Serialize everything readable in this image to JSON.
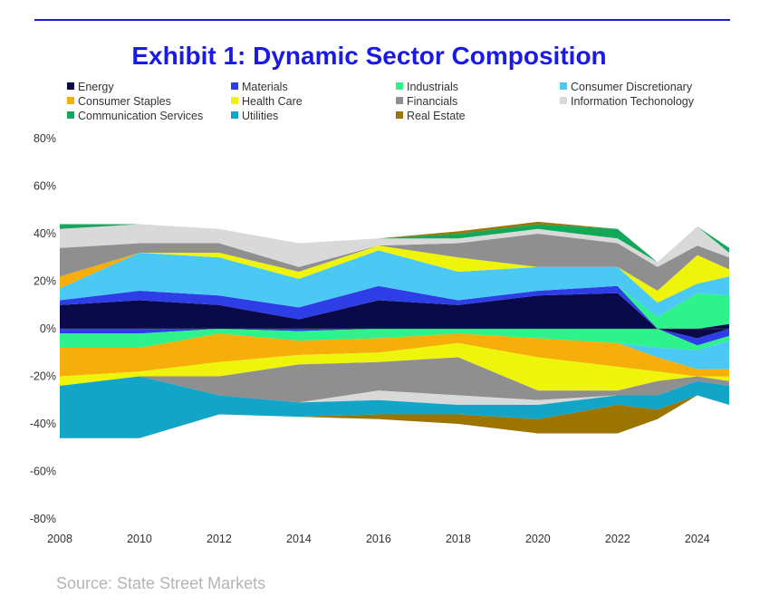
{
  "chart_data": {
    "type": "area",
    "title": "Exhibit 1: Dynamic Sector Composition",
    "xlabel": "",
    "ylabel": "",
    "ylim": [
      -80,
      80
    ],
    "xlim": [
      2008,
      2024.8
    ],
    "yticks": [
      "80%",
      "60%",
      "40%",
      "20%",
      "0%",
      "-20%",
      "-40%",
      "-60%",
      "-80%"
    ],
    "yticks_values": [
      80,
      60,
      40,
      20,
      0,
      -20,
      -40,
      -60,
      -80
    ],
    "xticks": [
      "2008",
      "2010",
      "2012",
      "2014",
      "2016",
      "2018",
      "2020",
      "2022",
      "2024"
    ],
    "xticks_values": [
      2008,
      2010,
      2012,
      2014,
      2016,
      2018,
      2020,
      2022,
      2024
    ],
    "legend_position": "top",
    "grid": false,
    "sectors": [
      {
        "name": "Energy",
        "color": "#0a0a4a"
      },
      {
        "name": "Materials",
        "color": "#2e3ee6"
      },
      {
        "name": "Industrials",
        "color": "#2ef28c"
      },
      {
        "name": "Consumer Discretionary",
        "color": "#4cc8f4"
      },
      {
        "name": "Consumer Staples",
        "color": "#f5ae0a"
      },
      {
        "name": "Health Care",
        "color": "#eef50a"
      },
      {
        "name": "Financials",
        "color": "#8f8f8f"
      },
      {
        "name": "Information Techonology",
        "color": "#d9d9d9"
      },
      {
        "name": "Communication Services",
        "color": "#12a85a"
      },
      {
        "name": "Utilities",
        "color": "#12a5c8"
      },
      {
        "name": "Real Estate",
        "color": "#9c7400"
      }
    ],
    "long_series": [
      {
        "name": "Energy",
        "x": [
          2008,
          2010,
          2012,
          2014,
          2016,
          2018,
          2020,
          2022,
          2023,
          2024,
          2024.8
        ],
        "values": [
          10,
          12,
          10,
          4,
          12,
          10,
          14,
          15,
          0,
          0,
          2
        ]
      },
      {
        "name": "Materials",
        "x": [
          2008,
          2010,
          2012,
          2014,
          2016,
          2018,
          2020,
          2022,
          2023,
          2024,
          2024.8
        ],
        "values": [
          2,
          4,
          4,
          5,
          6,
          2,
          2,
          3,
          0,
          0,
          0
        ]
      },
      {
        "name": "Industrials",
        "x": [
          2008,
          2010,
          2012,
          2014,
          2016,
          2018,
          2020,
          2022,
          2023,
          2024,
          2024.8
        ],
        "values": [
          0,
          0,
          0,
          0,
          0,
          0,
          0,
          0,
          5,
          15,
          12
        ]
      },
      {
        "name": "Consumer Discretionary",
        "x": [
          2008,
          2010,
          2012,
          2014,
          2016,
          2018,
          2020,
          2022,
          2023,
          2024,
          2024.8
        ],
        "values": [
          5,
          16,
          16,
          12,
          15,
          12,
          10,
          8,
          6,
          4,
          8
        ]
      },
      {
        "name": "Consumer Staples",
        "x": [
          2008,
          2010,
          2012,
          2014,
          2016,
          2018,
          2020,
          2022,
          2023,
          2024,
          2024.8
        ],
        "values": [
          5,
          0,
          0,
          0,
          0,
          0,
          0,
          0,
          0,
          0,
          0
        ]
      },
      {
        "name": "Health Care",
        "x": [
          2008,
          2010,
          2012,
          2014,
          2016,
          2018,
          2020,
          2022,
          2023,
          2024,
          2024.8
        ],
        "values": [
          0,
          0,
          2,
          3,
          2,
          6,
          0,
          0,
          5,
          12,
          3
        ]
      },
      {
        "name": "Financials",
        "x": [
          2008,
          2010,
          2012,
          2014,
          2016,
          2018,
          2020,
          2022,
          2023,
          2024,
          2024.8
        ],
        "values": [
          12,
          4,
          4,
          2,
          0,
          6,
          14,
          10,
          10,
          4,
          5
        ]
      },
      {
        "name": "Information Techonology",
        "x": [
          2008,
          2010,
          2012,
          2014,
          2016,
          2018,
          2020,
          2022,
          2023,
          2024,
          2024.8
        ],
        "values": [
          8,
          8,
          6,
          10,
          3,
          2,
          2,
          2,
          2,
          8,
          2
        ]
      },
      {
        "name": "Communication Services",
        "x": [
          2008,
          2010,
          2012,
          2014,
          2016,
          2018,
          2020,
          2022,
          2023,
          2024,
          2024.8
        ],
        "values": [
          2,
          0,
          0,
          0,
          0,
          2,
          2,
          4,
          0,
          0,
          2
        ]
      },
      {
        "name": "Utilities",
        "x": [
          2008,
          2010,
          2012,
          2014,
          2016,
          2018,
          2020,
          2022,
          2023,
          2024,
          2024.8
        ],
        "values": [
          0,
          0,
          0,
          0,
          0,
          0,
          0,
          0,
          0,
          0,
          0
        ]
      },
      {
        "name": "Real Estate",
        "x": [
          2008,
          2010,
          2012,
          2014,
          2016,
          2018,
          2020,
          2022,
          2023,
          2024,
          2024.8
        ],
        "values": [
          0,
          0,
          0,
          0,
          0,
          1,
          1,
          0,
          0,
          0,
          0
        ]
      }
    ],
    "short_series": [
      {
        "name": "Energy",
        "x": [
          2008,
          2010,
          2012,
          2014,
          2016,
          2018,
          2020,
          2022,
          2023,
          2024,
          2024.8
        ],
        "values": [
          0,
          0,
          0,
          0,
          0,
          0,
          0,
          0,
          0,
          -4,
          0
        ]
      },
      {
        "name": "Materials",
        "x": [
          2008,
          2010,
          2012,
          2014,
          2016,
          2018,
          2020,
          2022,
          2023,
          2024,
          2024.8
        ],
        "values": [
          -2,
          -2,
          0,
          -1,
          0,
          0,
          0,
          0,
          0,
          -3,
          -3
        ]
      },
      {
        "name": "Industrials",
        "x": [
          2008,
          2010,
          2012,
          2014,
          2016,
          2018,
          2020,
          2022,
          2023,
          2024,
          2024.8
        ],
        "values": [
          -6,
          -6,
          -2,
          -4,
          -4,
          -2,
          -4,
          -6,
          -8,
          -2,
          -2
        ]
      },
      {
        "name": "Consumer Discretionary",
        "x": [
          2008,
          2010,
          2012,
          2014,
          2016,
          2018,
          2020,
          2022,
          2023,
          2024,
          2024.8
        ],
        "values": [
          0,
          0,
          0,
          0,
          0,
          0,
          0,
          0,
          -4,
          -8,
          -12
        ]
      },
      {
        "name": "Consumer Staples",
        "x": [
          2008,
          2010,
          2012,
          2014,
          2016,
          2018,
          2020,
          2022,
          2023,
          2024,
          2024.8
        ],
        "values": [
          -12,
          -10,
          -12,
          -6,
          -6,
          -4,
          -8,
          -10,
          -6,
          -3,
          -3
        ]
      },
      {
        "name": "Health Care",
        "x": [
          2008,
          2010,
          2012,
          2014,
          2016,
          2018,
          2020,
          2022,
          2023,
          2024,
          2024.8
        ],
        "values": [
          -4,
          -2,
          -6,
          -4,
          -4,
          -6,
          -14,
          -10,
          -4,
          0,
          -2
        ]
      },
      {
        "name": "Financials",
        "x": [
          2008,
          2010,
          2012,
          2014,
          2016,
          2018,
          2020,
          2022,
          2023,
          2024,
          2024.8
        ],
        "values": [
          0,
          0,
          -8,
          -16,
          -12,
          -16,
          -4,
          -2,
          -6,
          -2,
          -2
        ]
      },
      {
        "name": "Information Techonology",
        "x": [
          2008,
          2010,
          2012,
          2014,
          2016,
          2018,
          2020,
          2022,
          2023,
          2024,
          2024.8
        ],
        "values": [
          0,
          0,
          0,
          0,
          -4,
          -4,
          -2,
          0,
          0,
          0,
          0
        ]
      },
      {
        "name": "Communication Services",
        "x": [
          2008,
          2010,
          2012,
          2014,
          2016,
          2018,
          2020,
          2022,
          2023,
          2024,
          2024.8
        ],
        "values": [
          0,
          0,
          0,
          0,
          0,
          0,
          0,
          0,
          0,
          0,
          0
        ]
      },
      {
        "name": "Utilities",
        "x": [
          2008,
          2010,
          2012,
          2014,
          2016,
          2018,
          2020,
          2022,
          2023,
          2024,
          2024.8
        ],
        "values": [
          -22,
          -26,
          -8,
          -6,
          -6,
          -4,
          -6,
          -4,
          -6,
          -6,
          -8
        ]
      },
      {
        "name": "Real Estate",
        "x": [
          2008,
          2010,
          2012,
          2014,
          2016,
          2018,
          2020,
          2022,
          2023,
          2024,
          2024.8
        ],
        "values": [
          0,
          0,
          0,
          0,
          -2,
          -4,
          -6,
          -12,
          -4,
          0,
          0
        ]
      }
    ]
  },
  "source": "Source: State Street Markets"
}
